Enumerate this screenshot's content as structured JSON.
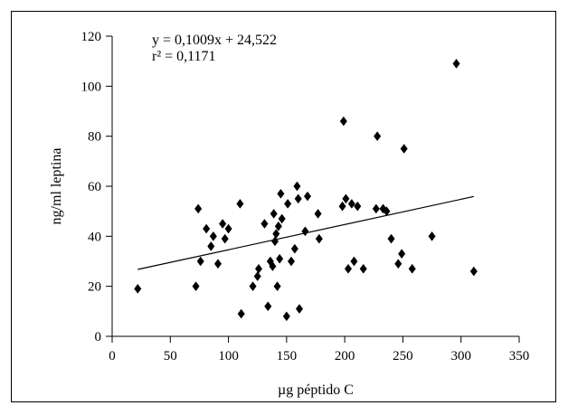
{
  "chart_data": {
    "type": "scatter",
    "xlabel": "µg péptido C",
    "ylabel": "ng/ml leptina",
    "xlim": [
      0,
      350
    ],
    "ylim": [
      0,
      120
    ],
    "xticks": [
      "0",
      "50",
      "100",
      "150",
      "200",
      "250",
      "300",
      "350"
    ],
    "yticks": [
      "0",
      "20",
      "40",
      "60",
      "80",
      "100",
      "120"
    ],
    "equation": "y = 0,1009x + 24,522",
    "r2": "r² = 0,1171",
    "trendline": {
      "slope": 0.1009,
      "intercept": 24.522,
      "x_range": [
        22,
        311
      ]
    },
    "marker": "diamond",
    "marker_color": "#000000",
    "grid": false,
    "points": [
      {
        "x": 22,
        "y": 19
      },
      {
        "x": 72,
        "y": 20
      },
      {
        "x": 74,
        "y": 51
      },
      {
        "x": 76,
        "y": 30
      },
      {
        "x": 81,
        "y": 43
      },
      {
        "x": 85,
        "y": 36
      },
      {
        "x": 87,
        "y": 40
      },
      {
        "x": 91,
        "y": 29
      },
      {
        "x": 95,
        "y": 45
      },
      {
        "x": 97,
        "y": 39
      },
      {
        "x": 100,
        "y": 43
      },
      {
        "x": 110,
        "y": 53
      },
      {
        "x": 111,
        "y": 9
      },
      {
        "x": 121,
        "y": 20
      },
      {
        "x": 125,
        "y": 24
      },
      {
        "x": 126,
        "y": 27
      },
      {
        "x": 131,
        "y": 45
      },
      {
        "x": 134,
        "y": 12
      },
      {
        "x": 136,
        "y": 30
      },
      {
        "x": 138,
        "y": 28
      },
      {
        "x": 139,
        "y": 49
      },
      {
        "x": 140,
        "y": 38
      },
      {
        "x": 141,
        "y": 41
      },
      {
        "x": 142,
        "y": 20
      },
      {
        "x": 143,
        "y": 44
      },
      {
        "x": 144,
        "y": 31
      },
      {
        "x": 145,
        "y": 57
      },
      {
        "x": 146,
        "y": 47
      },
      {
        "x": 150,
        "y": 8
      },
      {
        "x": 151,
        "y": 53
      },
      {
        "x": 154,
        "y": 30
      },
      {
        "x": 157,
        "y": 35
      },
      {
        "x": 159,
        "y": 60
      },
      {
        "x": 160,
        "y": 55
      },
      {
        "x": 161,
        "y": 11
      },
      {
        "x": 166,
        "y": 42
      },
      {
        "x": 168,
        "y": 56
      },
      {
        "x": 177,
        "y": 49
      },
      {
        "x": 178,
        "y": 39
      },
      {
        "x": 198,
        "y": 52
      },
      {
        "x": 199,
        "y": 86
      },
      {
        "x": 201,
        "y": 55
      },
      {
        "x": 203,
        "y": 27
      },
      {
        "x": 206,
        "y": 53
      },
      {
        "x": 208,
        "y": 30
      },
      {
        "x": 211,
        "y": 52
      },
      {
        "x": 216,
        "y": 27
      },
      {
        "x": 227,
        "y": 51
      },
      {
        "x": 228,
        "y": 80
      },
      {
        "x": 233,
        "y": 51
      },
      {
        "x": 236,
        "y": 50
      },
      {
        "x": 240,
        "y": 39
      },
      {
        "x": 246,
        "y": 29
      },
      {
        "x": 249,
        "y": 33
      },
      {
        "x": 251,
        "y": 75
      },
      {
        "x": 258,
        "y": 27
      },
      {
        "x": 275,
        "y": 40
      },
      {
        "x": 296,
        "y": 109
      },
      {
        "x": 311,
        "y": 26
      }
    ]
  }
}
